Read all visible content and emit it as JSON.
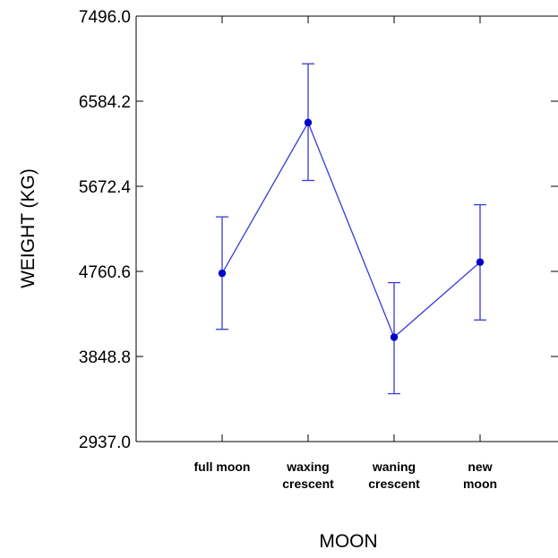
{
  "chart_data": {
    "type": "line",
    "title": "",
    "xlabel": "MOON",
    "ylabel": "WEIGHT (KG)",
    "categories": [
      [
        "full moon"
      ],
      [
        "waxing",
        "crescent"
      ],
      [
        "waning",
        "crescent"
      ],
      [
        "new",
        "moon"
      ]
    ],
    "series": [
      {
        "values": [
          4740,
          6355,
          4055,
          4860
        ],
        "error_low": [
          4140,
          5735,
          3450,
          4240
        ],
        "error_high": [
          5345,
          6985,
          4640,
          5475
        ]
      }
    ],
    "y_ticks": [
      "7496.0",
      "6584.2",
      "5672.4",
      "4760.6",
      "3848.8",
      "2937.0"
    ],
    "ylim": [
      2937.0,
      7496.0
    ],
    "grid": false,
    "legend": "none",
    "colors": {
      "series": "#3a3ad8",
      "marker": "#0000cc",
      "axis": "#000000"
    }
  }
}
